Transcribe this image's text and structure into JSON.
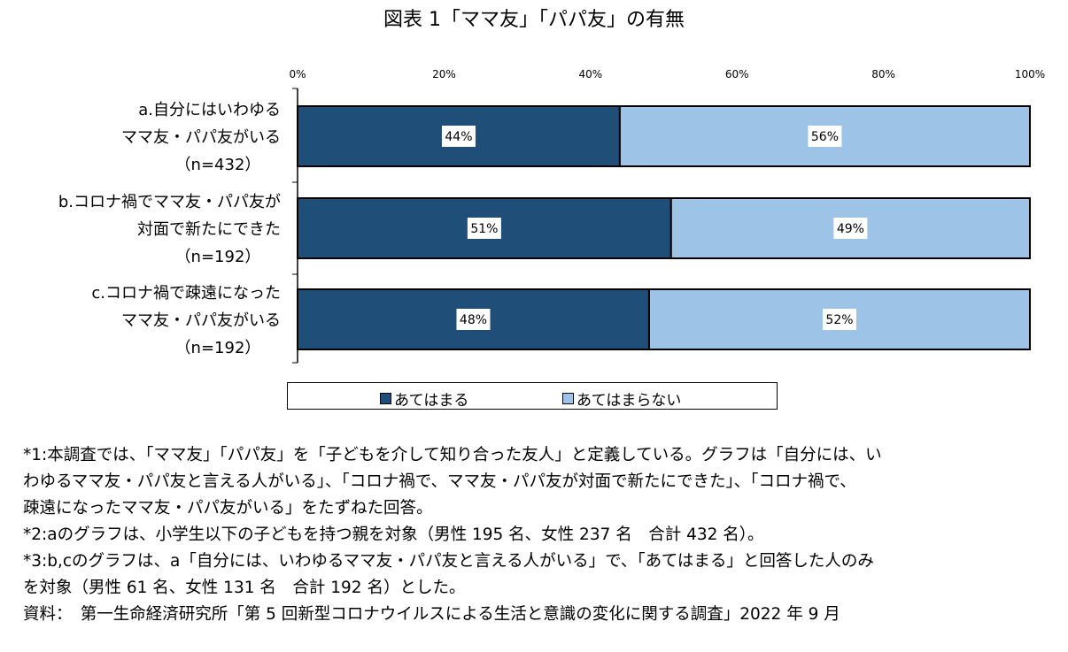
{
  "title": "図表 1「ママ友」「パパ友」の有無",
  "chart_data": {
    "type": "bar",
    "orientation": "horizontal",
    "stacked": true,
    "percent_stacked": true,
    "categories": [
      [
        "a.自分にはいわゆる",
        "ママ友・パパ友がいる",
        "（n=432）"
      ],
      [
        "b.コロナ禍でママ友・パパ友が",
        "対面で新たにできた",
        "（n=192）"
      ],
      [
        "c.コロナ禍で疎遠になった",
        "ママ友・パパ友がいる",
        "（n=192）"
      ]
    ],
    "series": [
      {
        "name": "あてはまる",
        "values": [
          44,
          51,
          48
        ],
        "labels": [
          "44%",
          "51%",
          "48%"
        ],
        "color": "#1f4e79"
      },
      {
        "name": "あてはまらない",
        "values": [
          56,
          49,
          52
        ],
        "labels": [
          "56%",
          "49%",
          "52%"
        ],
        "color": "#9dc3e6"
      }
    ],
    "xlim": [
      0,
      100
    ],
    "xticks": [
      "0%",
      "20%",
      "40%",
      "60%",
      "80%",
      "100%"
    ],
    "grid": false,
    "legend_position": "bottom"
  },
  "notes": [
    "*1:本調査では、「ママ友」「パパ友」を「子どもを介して知り合った友人」と定義している。グラフは「自分には、い",
    "わゆるママ友・パパ友と言える人がいる」、「コロナ禍で、ママ友・パパ友が対面で新たにできた」、「コロナ禍で、",
    "疎遠になったママ友・パパ友がいる」をたずねた回答。",
    "*2:aのグラフは、小学生以下の子どもを持つ親を対象（男性 195 名、女性 237 名　合計 432 名）。",
    "*3:b,cのグラフは、a「自分には、いわゆるママ友・パパ友と言える人がいる」で、「あてはまる」と回答した人のみ",
    "を対象（男性 61 名、女性 131 名　合計 192 名）とした。",
    "資料：　第一生命経済研究所「第 5 回新型コロナウイルスによる生活と意識の変化に関する調査」2022 年 9 月"
  ]
}
